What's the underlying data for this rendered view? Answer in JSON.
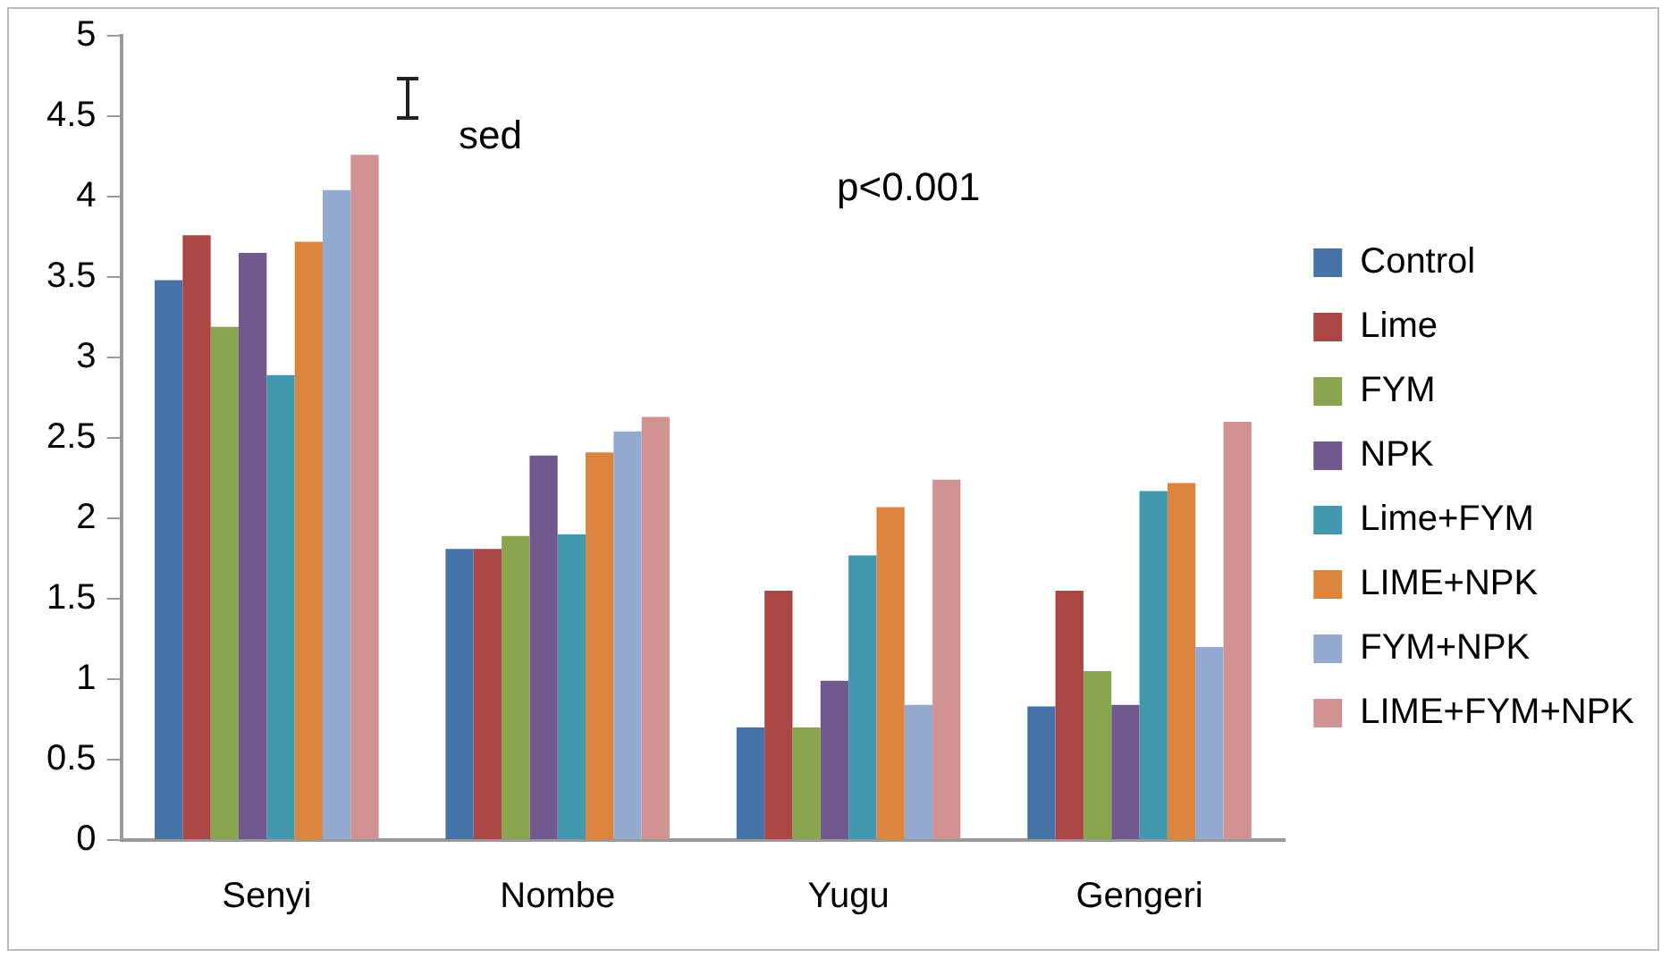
{
  "chart_data": {
    "type": "bar",
    "categories": [
      "Senyi",
      "Nombe",
      "Yugu",
      "Gengeri"
    ],
    "series": [
      {
        "name": "Control",
        "color": "#4572a7",
        "values": [
          3.48,
          1.81,
          0.7,
          0.83
        ]
      },
      {
        "name": "Lime",
        "color": "#aa4643",
        "values": [
          3.76,
          1.81,
          1.55,
          1.55
        ]
      },
      {
        "name": "FYM",
        "color": "#89a54e",
        "values": [
          3.19,
          1.89,
          0.7,
          1.05
        ]
      },
      {
        "name": "NPK",
        "color": "#71588f",
        "values": [
          3.65,
          2.39,
          0.99,
          0.84
        ]
      },
      {
        "name": "Lime+FYM",
        "color": "#4198af",
        "values": [
          2.89,
          1.9,
          1.77,
          2.17
        ]
      },
      {
        "name": "LIME+NPK",
        "color": "#db843d",
        "values": [
          3.72,
          2.41,
          2.07,
          2.22
        ]
      },
      {
        "name": "FYM+NPK",
        "color": "#93a9cf",
        "values": [
          4.04,
          2.54,
          0.84,
          1.2
        ]
      },
      {
        "name": "LIME+FYM+NPK",
        "color": "#d19392",
        "values": [
          4.26,
          2.63,
          2.24,
          2.6
        ]
      }
    ],
    "ylim": [
      0,
      5
    ],
    "yticks": [
      0,
      0.5,
      1,
      1.5,
      2,
      2.5,
      3,
      3.5,
      4,
      4.5,
      5
    ],
    "grid": false,
    "legend": "right",
    "annotations": [
      "sed",
      "p<0.001"
    ]
  }
}
